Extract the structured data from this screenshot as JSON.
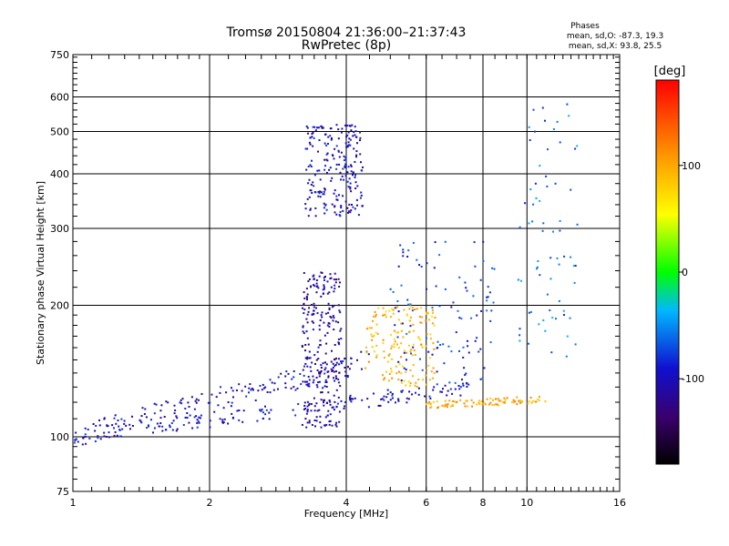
{
  "chart_data": {
    "type": "scatter",
    "title": "Tromsø 20150804 21:36:00–21:37:43",
    "subtitle": "RwPretec (8p)",
    "phase_box": {
      "heading": "Phases",
      "line_o": "mean, sd,O:  -87.3, 19.3",
      "line_x": "mean, sd,X:  93.8, 25.5"
    },
    "xlabel": "Frequency [MHz]",
    "ylabel": "Stationary phase Virtual Height [km]",
    "x_scale": "log",
    "y_scale": "log",
    "xlim": [
      1,
      16
    ],
    "ylim": [
      75,
      750
    ],
    "x_ticks": [
      1,
      2,
      4,
      6,
      8,
      10,
      16
    ],
    "x_tick_labels": [
      "1",
      "2",
      "4",
      "6",
      "8",
      "10",
      "16"
    ],
    "y_ticks": [
      75,
      100,
      200,
      300,
      400,
      500,
      600,
      750
    ],
    "y_tick_labels": [
      "75",
      "100",
      "200",
      "300",
      "400",
      "500",
      "600",
      "750"
    ],
    "grid": true,
    "colorbar": {
      "label": "[deg]",
      "range": [
        -180,
        180
      ],
      "ticks": [
        -100,
        0,
        100
      ],
      "tick_labels": [
        "-100",
        "0",
        "100"
      ]
    },
    "traces": [
      {
        "name": "o-trace-lower",
        "x_range": [
          1.0,
          7.5
        ],
        "y_start": 100,
        "y_end": 130,
        "phase": -95,
        "n": 180,
        "spread": 4
      },
      {
        "name": "o-trace-upper",
        "x_range": [
          1.05,
          4.5
        ],
        "y_start": 102,
        "y_end": 150,
        "phase": -100,
        "n": 170,
        "spread": 6
      },
      {
        "name": "dense-3.5MHz",
        "x_range": [
          3.2,
          3.9
        ],
        "y_start": 105,
        "y_end": 240,
        "phase": -110,
        "n": 260,
        "spread": 0
      },
      {
        "name": "F-layer-cluster",
        "x_range": [
          3.25,
          4.35
        ],
        "y_start": 320,
        "y_end": 520,
        "phase": -100,
        "n": 220,
        "spread": 0
      },
      {
        "name": "x-trace-yellow",
        "x_range": [
          4.4,
          6.3
        ],
        "y_start": 130,
        "y_end": 200,
        "phase": 95,
        "n": 160,
        "spread": 0
      },
      {
        "name": "x-trace-flat",
        "x_range": [
          6.0,
          11.0
        ],
        "y_start": 118,
        "y_end": 122,
        "phase": 100,
        "n": 90,
        "spread": 2
      },
      {
        "name": "spread-F-6to8",
        "x_range": [
          5.0,
          8.5
        ],
        "y_start": 130,
        "y_end": 280,
        "phase": -80,
        "n": 110,
        "spread": 0
      },
      {
        "name": "high-freq-scatter",
        "x_range": [
          9.5,
          13.0
        ],
        "y_start": 150,
        "y_end": 580,
        "phase": -60,
        "n": 70,
        "spread": 0
      }
    ]
  }
}
